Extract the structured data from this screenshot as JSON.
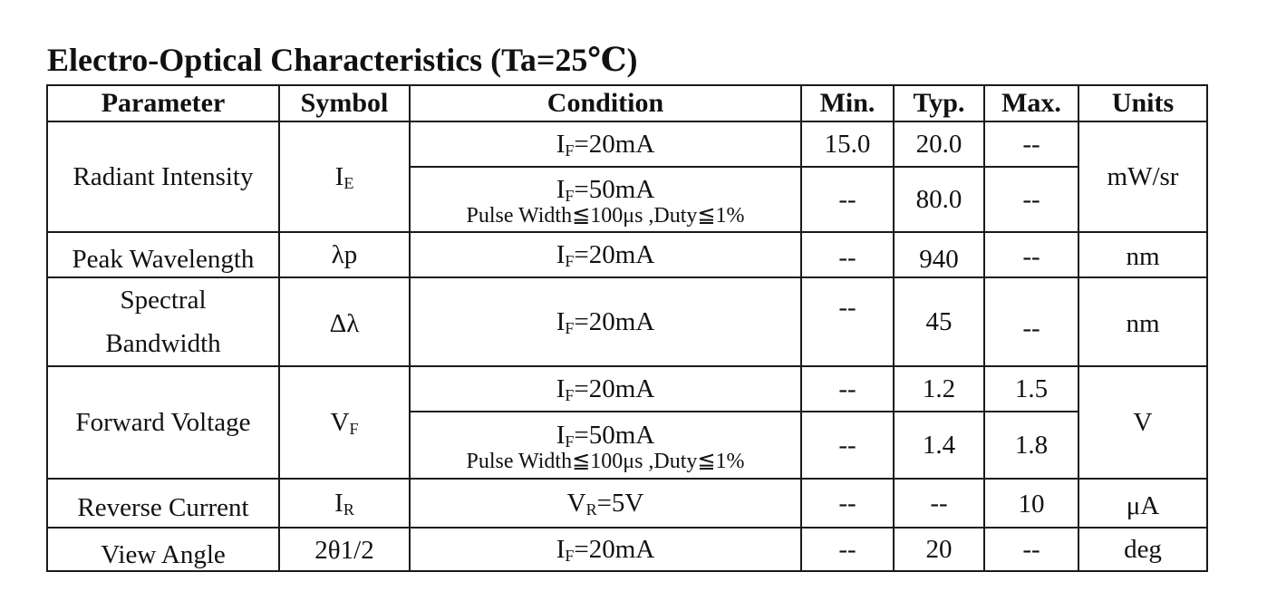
{
  "title": "Electro-Optical Characteristics (Ta=25℃)",
  "headers": {
    "parameter": "Parameter",
    "symbol": "Symbol",
    "condition": "Condition",
    "min": "Min.",
    "typ": "Typ.",
    "max": "Max.",
    "units": "Units"
  },
  "rows": {
    "radiant": {
      "parameter": "Radiant Intensity",
      "symbol_main": "I",
      "symbol_sub": "E",
      "cond1_main": "I",
      "cond1_sub": "F",
      "cond1_rest": "=20mA",
      "min1": "15.0",
      "typ1": "20.0",
      "max1": "--",
      "cond2_main": "I",
      "cond2_sub": "F",
      "cond2_rest": "=50mA",
      "cond2_note": "Pulse Width≦100μs ,Duty≦1%",
      "min2": "--",
      "typ2": "80.0",
      "max2": "--",
      "units": "mW/sr"
    },
    "peak": {
      "parameter": "Peak Wavelength",
      "symbol": "λp",
      "cond_main": "I",
      "cond_sub": "F",
      "cond_rest": "=20mA",
      "min": "--",
      "typ": "940",
      "max": "--",
      "units": "nm"
    },
    "spectral": {
      "parameter_line1": "Spectral",
      "parameter_line2": "Bandwidth",
      "symbol": "Δλ",
      "cond_main": "I",
      "cond_sub": "F",
      "cond_rest": "=20mA",
      "min": "--",
      "typ": "45",
      "max": "--",
      "units": "nm"
    },
    "forward": {
      "parameter": "Forward Voltage",
      "symbol_main": "V",
      "symbol_sub": "F",
      "cond1_main": "I",
      "cond1_sub": "F",
      "cond1_rest": "=20mA",
      "min1": "--",
      "typ1": "1.2",
      "max1": "1.5",
      "cond2_main": "I",
      "cond2_sub": "F",
      "cond2_rest": "=50mA",
      "cond2_note": "Pulse Width≦100μs ,Duty≦1%",
      "min2": "--",
      "typ2": "1.4",
      "max2": "1.8",
      "units": "V"
    },
    "reverse": {
      "parameter": "Reverse Current",
      "symbol_main": "I",
      "symbol_sub": "R",
      "cond_main": "V",
      "cond_sub": "R",
      "cond_rest": "=5V",
      "min": "--",
      "typ": "--",
      "max": "10",
      "units": "μA"
    },
    "view": {
      "parameter": "View Angle",
      "symbol": "2θ1/2",
      "cond_main": "I",
      "cond_sub": "F",
      "cond_rest": "=20mA",
      "min": "--",
      "typ": "20",
      "max": "--",
      "units": "deg"
    }
  }
}
